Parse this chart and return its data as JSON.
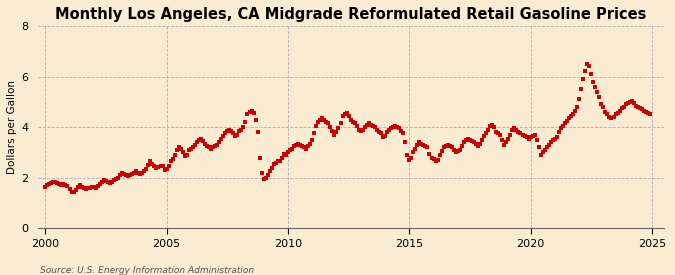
{
  "title": "Monthly Los Angeles, CA Midgrade Reformulated Retail Gasoline Prices",
  "ylabel": "Dollars per Gallon",
  "source": "Source: U.S. Energy Information Administration",
  "xlim": [
    1999.7,
    2025.5
  ],
  "ylim": [
    0,
    8
  ],
  "yticks": [
    0,
    2,
    4,
    6,
    8
  ],
  "xticks": [
    2000,
    2005,
    2010,
    2015,
    2020,
    2025
  ],
  "marker_color": "#cc0000",
  "bg_color": "#faecd2",
  "grid_color": "#aaaaaa",
  "title_fontsize": 10.5,
  "label_fontsize": 7.5,
  "tick_fontsize": 8,
  "source_fontsize": 6.5,
  "dates": [
    2000.0,
    2000.083,
    2000.167,
    2000.25,
    2000.333,
    2000.417,
    2000.5,
    2000.583,
    2000.667,
    2000.75,
    2000.833,
    2000.917,
    2001.0,
    2001.083,
    2001.167,
    2001.25,
    2001.333,
    2001.417,
    2001.5,
    2001.583,
    2001.667,
    2001.75,
    2001.833,
    2001.917,
    2002.0,
    2002.083,
    2002.167,
    2002.25,
    2002.333,
    2002.417,
    2002.5,
    2002.583,
    2002.667,
    2002.75,
    2002.833,
    2002.917,
    2003.0,
    2003.083,
    2003.167,
    2003.25,
    2003.333,
    2003.417,
    2003.5,
    2003.583,
    2003.667,
    2003.75,
    2003.833,
    2003.917,
    2004.0,
    2004.083,
    2004.167,
    2004.25,
    2004.333,
    2004.417,
    2004.5,
    2004.583,
    2004.667,
    2004.75,
    2004.833,
    2004.917,
    2005.0,
    2005.083,
    2005.167,
    2005.25,
    2005.333,
    2005.417,
    2005.5,
    2005.583,
    2005.667,
    2005.75,
    2005.833,
    2005.917,
    2006.0,
    2006.083,
    2006.167,
    2006.25,
    2006.333,
    2006.417,
    2006.5,
    2006.583,
    2006.667,
    2006.75,
    2006.833,
    2006.917,
    2007.0,
    2007.083,
    2007.167,
    2007.25,
    2007.333,
    2007.417,
    2007.5,
    2007.583,
    2007.667,
    2007.75,
    2007.833,
    2007.917,
    2008.0,
    2008.083,
    2008.167,
    2008.25,
    2008.333,
    2008.417,
    2008.5,
    2008.583,
    2008.667,
    2008.75,
    2008.833,
    2008.917,
    2009.0,
    2009.083,
    2009.167,
    2009.25,
    2009.333,
    2009.417,
    2009.5,
    2009.583,
    2009.667,
    2009.75,
    2009.833,
    2009.917,
    2010.0,
    2010.083,
    2010.167,
    2010.25,
    2010.333,
    2010.417,
    2010.5,
    2010.583,
    2010.667,
    2010.75,
    2010.833,
    2010.917,
    2011.0,
    2011.083,
    2011.167,
    2011.25,
    2011.333,
    2011.417,
    2011.5,
    2011.583,
    2011.667,
    2011.75,
    2011.833,
    2011.917,
    2012.0,
    2012.083,
    2012.167,
    2012.25,
    2012.333,
    2012.417,
    2012.5,
    2012.583,
    2012.667,
    2012.75,
    2012.833,
    2012.917,
    2013.0,
    2013.083,
    2013.167,
    2013.25,
    2013.333,
    2013.417,
    2013.5,
    2013.583,
    2013.667,
    2013.75,
    2013.833,
    2013.917,
    2014.0,
    2014.083,
    2014.167,
    2014.25,
    2014.333,
    2014.417,
    2014.5,
    2014.583,
    2014.667,
    2014.75,
    2014.833,
    2014.917,
    2015.0,
    2015.083,
    2015.167,
    2015.25,
    2015.333,
    2015.417,
    2015.5,
    2015.583,
    2015.667,
    2015.75,
    2015.833,
    2015.917,
    2016.0,
    2016.083,
    2016.167,
    2016.25,
    2016.333,
    2016.417,
    2016.5,
    2016.583,
    2016.667,
    2016.75,
    2016.833,
    2016.917,
    2017.0,
    2017.083,
    2017.167,
    2017.25,
    2017.333,
    2017.417,
    2017.5,
    2017.583,
    2017.667,
    2017.75,
    2017.833,
    2017.917,
    2018.0,
    2018.083,
    2018.167,
    2018.25,
    2018.333,
    2018.417,
    2018.5,
    2018.583,
    2018.667,
    2018.75,
    2018.833,
    2018.917,
    2019.0,
    2019.083,
    2019.167,
    2019.25,
    2019.333,
    2019.417,
    2019.5,
    2019.583,
    2019.667,
    2019.75,
    2019.833,
    2019.917,
    2020.0,
    2020.083,
    2020.167,
    2020.25,
    2020.333,
    2020.417,
    2020.5,
    2020.583,
    2020.667,
    2020.75,
    2020.833,
    2020.917,
    2021.0,
    2021.083,
    2021.167,
    2021.25,
    2021.333,
    2021.417,
    2021.5,
    2021.583,
    2021.667,
    2021.75,
    2021.833,
    2021.917,
    2022.0,
    2022.083,
    2022.167,
    2022.25,
    2022.333,
    2022.417,
    2022.5,
    2022.583,
    2022.667,
    2022.75,
    2022.833,
    2022.917,
    2023.0,
    2023.083,
    2023.167,
    2023.25,
    2023.333,
    2023.417,
    2023.5,
    2023.583,
    2023.667,
    2023.75,
    2023.833,
    2023.917,
    2024.0,
    2024.083,
    2024.167,
    2024.25,
    2024.333,
    2024.417,
    2024.5,
    2024.583,
    2024.667,
    2024.75,
    2024.833,
    2024.917
  ],
  "prices": [
    1.65,
    1.72,
    1.75,
    1.8,
    1.85,
    1.82,
    1.78,
    1.74,
    1.72,
    1.75,
    1.7,
    1.68,
    1.55,
    1.45,
    1.42,
    1.5,
    1.62,
    1.7,
    1.65,
    1.6,
    1.55,
    1.6,
    1.58,
    1.62,
    1.65,
    1.6,
    1.68,
    1.75,
    1.85,
    1.9,
    1.88,
    1.82,
    1.8,
    1.85,
    1.9,
    1.95,
    2.0,
    2.1,
    2.2,
    2.15,
    2.1,
    2.05,
    2.1,
    2.15,
    2.2,
    2.25,
    2.2,
    2.15,
    2.2,
    2.25,
    2.35,
    2.5,
    2.65,
    2.55,
    2.45,
    2.4,
    2.42,
    2.48,
    2.45,
    2.3,
    2.35,
    2.45,
    2.65,
    2.75,
    2.9,
    3.1,
    3.2,
    3.15,
    3.0,
    2.85,
    2.9,
    3.1,
    3.15,
    3.2,
    3.3,
    3.4,
    3.5,
    3.55,
    3.45,
    3.35,
    3.25,
    3.2,
    3.15,
    3.2,
    3.25,
    3.3,
    3.4,
    3.55,
    3.65,
    3.75,
    3.85,
    3.9,
    3.85,
    3.75,
    3.65,
    3.7,
    3.85,
    3.9,
    4.0,
    4.2,
    4.5,
    4.6,
    4.65,
    4.55,
    4.3,
    3.8,
    2.8,
    2.2,
    1.95,
    2.0,
    2.1,
    2.25,
    2.4,
    2.55,
    2.6,
    2.65,
    2.65,
    2.8,
    2.95,
    2.9,
    3.0,
    3.1,
    3.15,
    3.25,
    3.3,
    3.35,
    3.3,
    3.25,
    3.2,
    3.15,
    3.25,
    3.35,
    3.5,
    3.75,
    4.05,
    4.2,
    4.3,
    4.35,
    4.3,
    4.2,
    4.15,
    4.0,
    3.85,
    3.7,
    3.8,
    3.95,
    4.15,
    4.45,
    4.5,
    4.55,
    4.45,
    4.3,
    4.2,
    4.15,
    4.05,
    3.9,
    3.85,
    3.9,
    4.0,
    4.1,
    4.15,
    4.1,
    4.05,
    4.0,
    3.9,
    3.8,
    3.75,
    3.6,
    3.65,
    3.8,
    3.9,
    3.95,
    4.0,
    4.05,
    4.0,
    3.95,
    3.85,
    3.75,
    3.4,
    2.9,
    2.7,
    2.8,
    3.0,
    3.15,
    3.3,
    3.4,
    3.35,
    3.3,
    3.25,
    3.2,
    2.95,
    2.8,
    2.75,
    2.65,
    2.7,
    2.9,
    3.05,
    3.2,
    3.25,
    3.3,
    3.25,
    3.2,
    3.1,
    3.0,
    3.05,
    3.1,
    3.25,
    3.4,
    3.5,
    3.55,
    3.5,
    3.45,
    3.4,
    3.35,
    3.25,
    3.35,
    3.5,
    3.65,
    3.75,
    3.9,
    4.05,
    4.1,
    4.0,
    3.8,
    3.75,
    3.7,
    3.5,
    3.3,
    3.4,
    3.55,
    3.7,
    3.9,
    3.95,
    3.9,
    3.8,
    3.75,
    3.7,
    3.65,
    3.6,
    3.55,
    3.6,
    3.65,
    3.7,
    3.5,
    3.2,
    2.9,
    3.0,
    3.1,
    3.2,
    3.3,
    3.4,
    3.5,
    3.55,
    3.6,
    3.8,
    3.95,
    4.05,
    4.15,
    4.25,
    4.35,
    4.45,
    4.5,
    4.65,
    4.8,
    5.1,
    5.5,
    5.9,
    6.2,
    6.5,
    6.4,
    6.1,
    5.8,
    5.6,
    5.4,
    5.2,
    4.9,
    4.8,
    4.6,
    4.5,
    4.4,
    4.35,
    4.4,
    4.5,
    4.55,
    4.65,
    4.75,
    4.8,
    4.9,
    4.95,
    5.0,
    5.05,
    4.95,
    4.85,
    4.8,
    4.75,
    4.7,
    4.65,
    4.6,
    4.55,
    4.5
  ]
}
